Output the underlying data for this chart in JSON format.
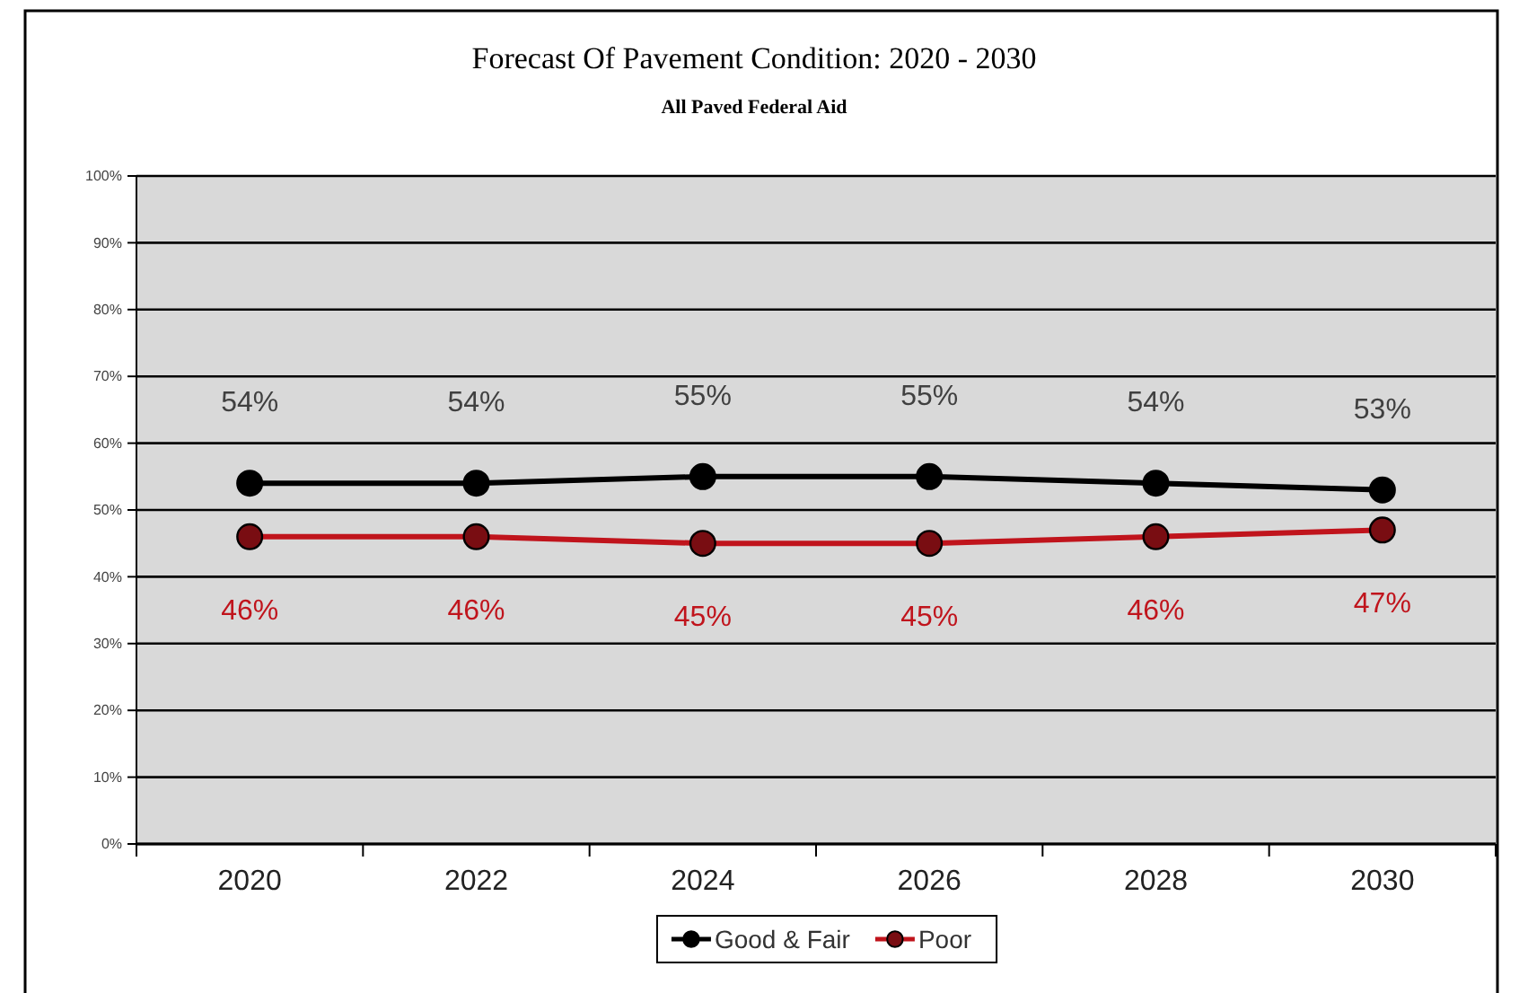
{
  "chart_data": {
    "type": "line",
    "title": "Forecast Of Pavement Condition: 2020 - 2030",
    "subtitle": "All Paved Federal Aid",
    "categories": [
      "2020",
      "2022",
      "2024",
      "2026",
      "2028",
      "2030"
    ],
    "series": [
      {
        "name": "Good & Fair",
        "color": "#000000",
        "values": [
          54,
          54,
          55,
          55,
          54,
          53
        ],
        "value_labels": [
          "54%",
          "54%",
          "55%",
          "55%",
          "54%",
          "53%"
        ]
      },
      {
        "name": "Poor",
        "color": "#c0141c",
        "values": [
          46,
          46,
          45,
          45,
          46,
          47
        ],
        "value_labels": [
          "46%",
          "46%",
          "45%",
          "45%",
          "46%",
          "47%"
        ]
      }
    ],
    "ylim": [
      0,
      100
    ],
    "yticks": [
      {
        "value": 0,
        "label": "0%"
      },
      {
        "value": 10,
        "label": "10%"
      },
      {
        "value": 20,
        "label": "20%"
      },
      {
        "value": 30,
        "label": "30%"
      },
      {
        "value": 40,
        "label": "40%"
      },
      {
        "value": 50,
        "label": "50%"
      },
      {
        "value": 60,
        "label": "60%"
      },
      {
        "value": 70,
        "label": "70%"
      },
      {
        "value": 80,
        "label": "80%"
      },
      {
        "value": 90,
        "label": "90%"
      },
      {
        "value": 100,
        "label": "100%"
      }
    ],
    "grid": "y",
    "legend": "bottom",
    "marker": "circle",
    "line_style": "solid"
  }
}
